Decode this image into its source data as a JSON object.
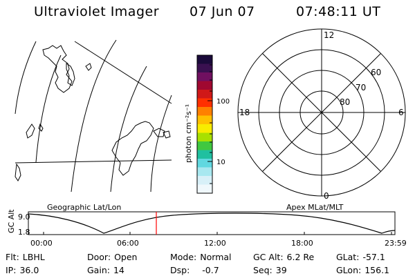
{
  "header": {
    "title": "Ultraviolet Imager",
    "date": "07 Jun 07",
    "time": "07:48:11 UT"
  },
  "geo_panel": {
    "label": "Geographic Lat/Lon"
  },
  "polar_panel": {
    "label": "Apex MLat/MLT",
    "mlt_labels": [
      "12",
      "18",
      "6",
      "0"
    ],
    "mlat_labels": [
      "60",
      "70",
      "80"
    ]
  },
  "colorbar": {
    "unit_label": "photon cm⁻²s⁻¹",
    "ticks": [
      "100",
      "10"
    ],
    "colors": [
      "#1a0a3a",
      "#3a1050",
      "#701060",
      "#a00830",
      "#d01818",
      "#ff3000",
      "#ff8000",
      "#ffc000",
      "#f8ec00",
      "#a8e000",
      "#40c840",
      "#20c0a0",
      "#60d8e0",
      "#a8e8f0",
      "#d8f0f8",
      "#f0f8fc"
    ]
  },
  "altitude_plot": {
    "y_label": "GC Alt",
    "y_ticks": [
      "9.0",
      "1.8"
    ],
    "x_ticks": [
      "00:00",
      "06:00",
      "12:00",
      "18:00",
      "23:59"
    ],
    "current_time_marker": "07:48"
  },
  "status": {
    "flt_label": "Flt:",
    "flt_value": "LBHL",
    "ip_label": "IP:",
    "ip_value": "36.0",
    "door_label": "Door:",
    "door_value": "Open",
    "gain_label": "Gain:",
    "gain_value": "14",
    "mode_label": "Mode:",
    "mode_value": "Normal",
    "dsp_label": "Dsp:",
    "dsp_value": "-0.7",
    "gcalt_label": "GC Alt:",
    "gcalt_value": "6.2 Re",
    "seq_label": "Seq:",
    "seq_value": "39",
    "glat_label": "GLat:",
    "glat_value": "-57.1",
    "glon_label": "GLon:",
    "glon_value": "156.1"
  }
}
